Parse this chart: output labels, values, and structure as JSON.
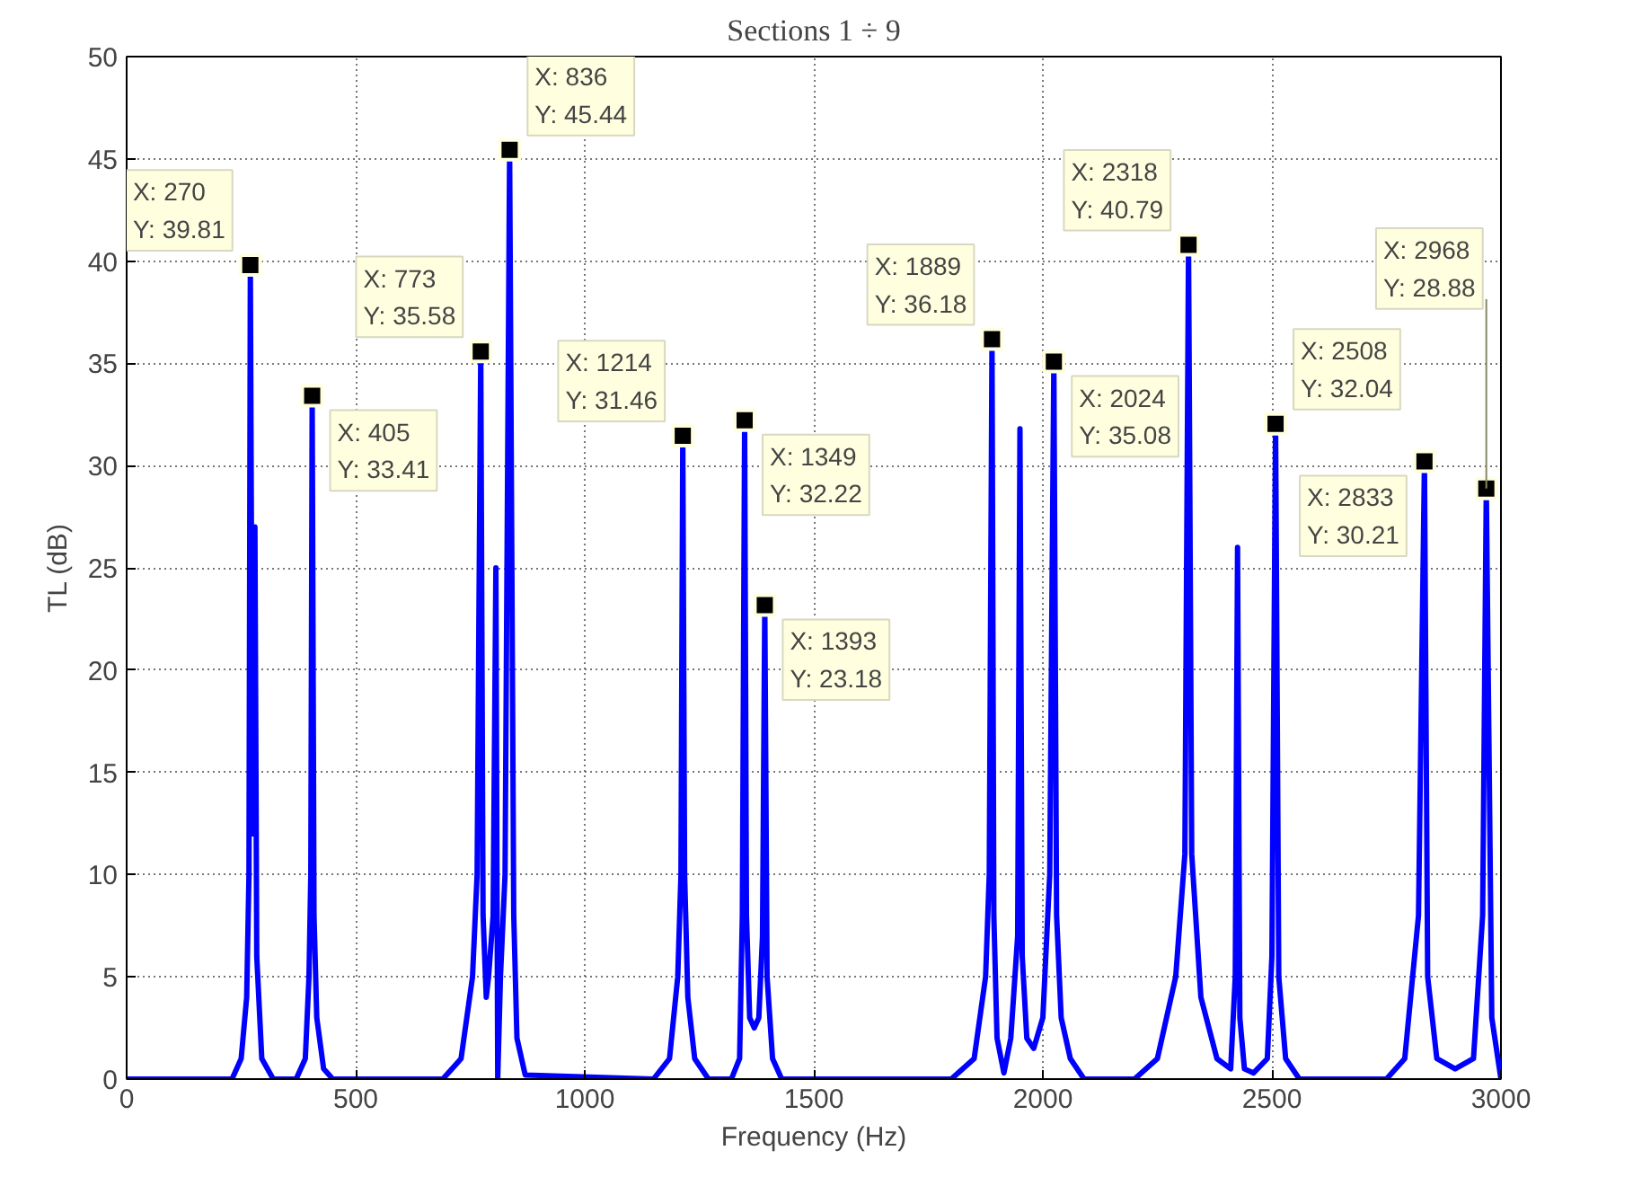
{
  "chart_data": {
    "type": "line",
    "title": "Sections 1 ÷ 9",
    "xlabel": "Frequency (Hz)",
    "ylabel": "TL (dB)",
    "x": [
      0,
      230,
      250,
      262,
      267,
      270,
      275,
      280,
      284,
      295,
      320,
      370,
      390,
      398,
      402,
      405,
      409,
      415,
      430,
      450,
      690,
      730,
      755,
      765,
      773,
      778,
      785,
      790,
      800,
      806,
      810,
      816,
      826,
      836,
      845,
      852,
      870,
      1150,
      1185,
      1203,
      1210,
      1214,
      1218,
      1225,
      1240,
      1270,
      1320,
      1338,
      1344,
      1349,
      1353,
      1360,
      1370,
      1380,
      1388,
      1393,
      1398,
      1410,
      1430,
      1800,
      1850,
      1875,
      1883,
      1889,
      1893,
      1900,
      1915,
      1930,
      1945,
      1950,
      1955,
      1965,
      1980,
      2000,
      2015,
      2024,
      2030,
      2040,
      2060,
      2090,
      2200,
      2250,
      2290,
      2310,
      2318,
      2325,
      2345,
      2380,
      2410,
      2420,
      2425,
      2430,
      2440,
      2460,
      2490,
      2500,
      2508,
      2515,
      2530,
      2560,
      2750,
      2790,
      2820,
      2833,
      2840,
      2860,
      2900,
      2940,
      2960,
      2968,
      2980,
      3000
    ],
    "series": [
      {
        "color": "#0000ff",
        "values": [
          0,
          0,
          1,
          4,
          10,
          39.81,
          12,
          27,
          6,
          1,
          0,
          0,
          1,
          5,
          10,
          33.41,
          8,
          3,
          0.5,
          0,
          0,
          1,
          5,
          10,
          35.58,
          8,
          4,
          5,
          8,
          25,
          0,
          5,
          10,
          45.44,
          8,
          2,
          0.2,
          0,
          1,
          5,
          10,
          31.46,
          10,
          4,
          1,
          0,
          0,
          1,
          8,
          32.22,
          8,
          3,
          2.5,
          3,
          7,
          23.18,
          5,
          1,
          0,
          0,
          1,
          5,
          10,
          36.18,
          8,
          2,
          0.3,
          2,
          7,
          31.8,
          6,
          2,
          1.5,
          3,
          10,
          35.08,
          8,
          3,
          1,
          0,
          0,
          1,
          5,
          11,
          40.79,
          11,
          4,
          1,
          0.5,
          5,
          26,
          3,
          0.5,
          0.3,
          1,
          6,
          32.04,
          5,
          1,
          0,
          0,
          1,
          8,
          30.21,
          5,
          1,
          0.5,
          1,
          8,
          28.88,
          3,
          0
        ]
      }
    ],
    "xlim": [
      0,
      3000
    ],
    "ylim": [
      0,
      50
    ],
    "xticks": [
      0,
      500,
      1000,
      1500,
      2000,
      2500,
      3000
    ],
    "yticks": [
      0,
      5,
      10,
      15,
      20,
      25,
      30,
      35,
      40,
      45,
      50
    ],
    "grid": true,
    "line_style": "solid",
    "annotations": [
      {
        "text": "X: 270\nY: 39.81",
        "x": 270,
        "y": 39.81
      },
      {
        "text": "X: 405\nY: 33.41",
        "x": 405,
        "y": 33.41
      },
      {
        "text": "X: 773\nY: 35.58",
        "x": 773,
        "y": 35.58
      },
      {
        "text": "X: 836\nY: 45.44",
        "x": 836,
        "y": 45.44
      },
      {
        "text": "X: 1214\nY: 31.46",
        "x": 1214,
        "y": 31.46
      },
      {
        "text": "X: 1349\nY: 32.22",
        "x": 1349,
        "y": 32.22
      },
      {
        "text": "X: 1393\nY: 23.18",
        "x": 1393,
        "y": 23.18
      },
      {
        "text": "X: 1889\nY: 36.18",
        "x": 1889,
        "y": 36.18
      },
      {
        "text": "X: 2024\nY: 35.08",
        "x": 2024,
        "y": 35.08
      },
      {
        "text": "X: 2318\nY: 40.79",
        "x": 2318,
        "y": 40.79
      },
      {
        "text": "X: 2508\nY: 32.04",
        "x": 2508,
        "y": 32.04
      },
      {
        "text": "X: 2833\nY: 30.21",
        "x": 2833,
        "y": 30.21
      },
      {
        "text": "X: 2968\nY: 28.88",
        "x": 2968,
        "y": 28.88
      }
    ]
  }
}
